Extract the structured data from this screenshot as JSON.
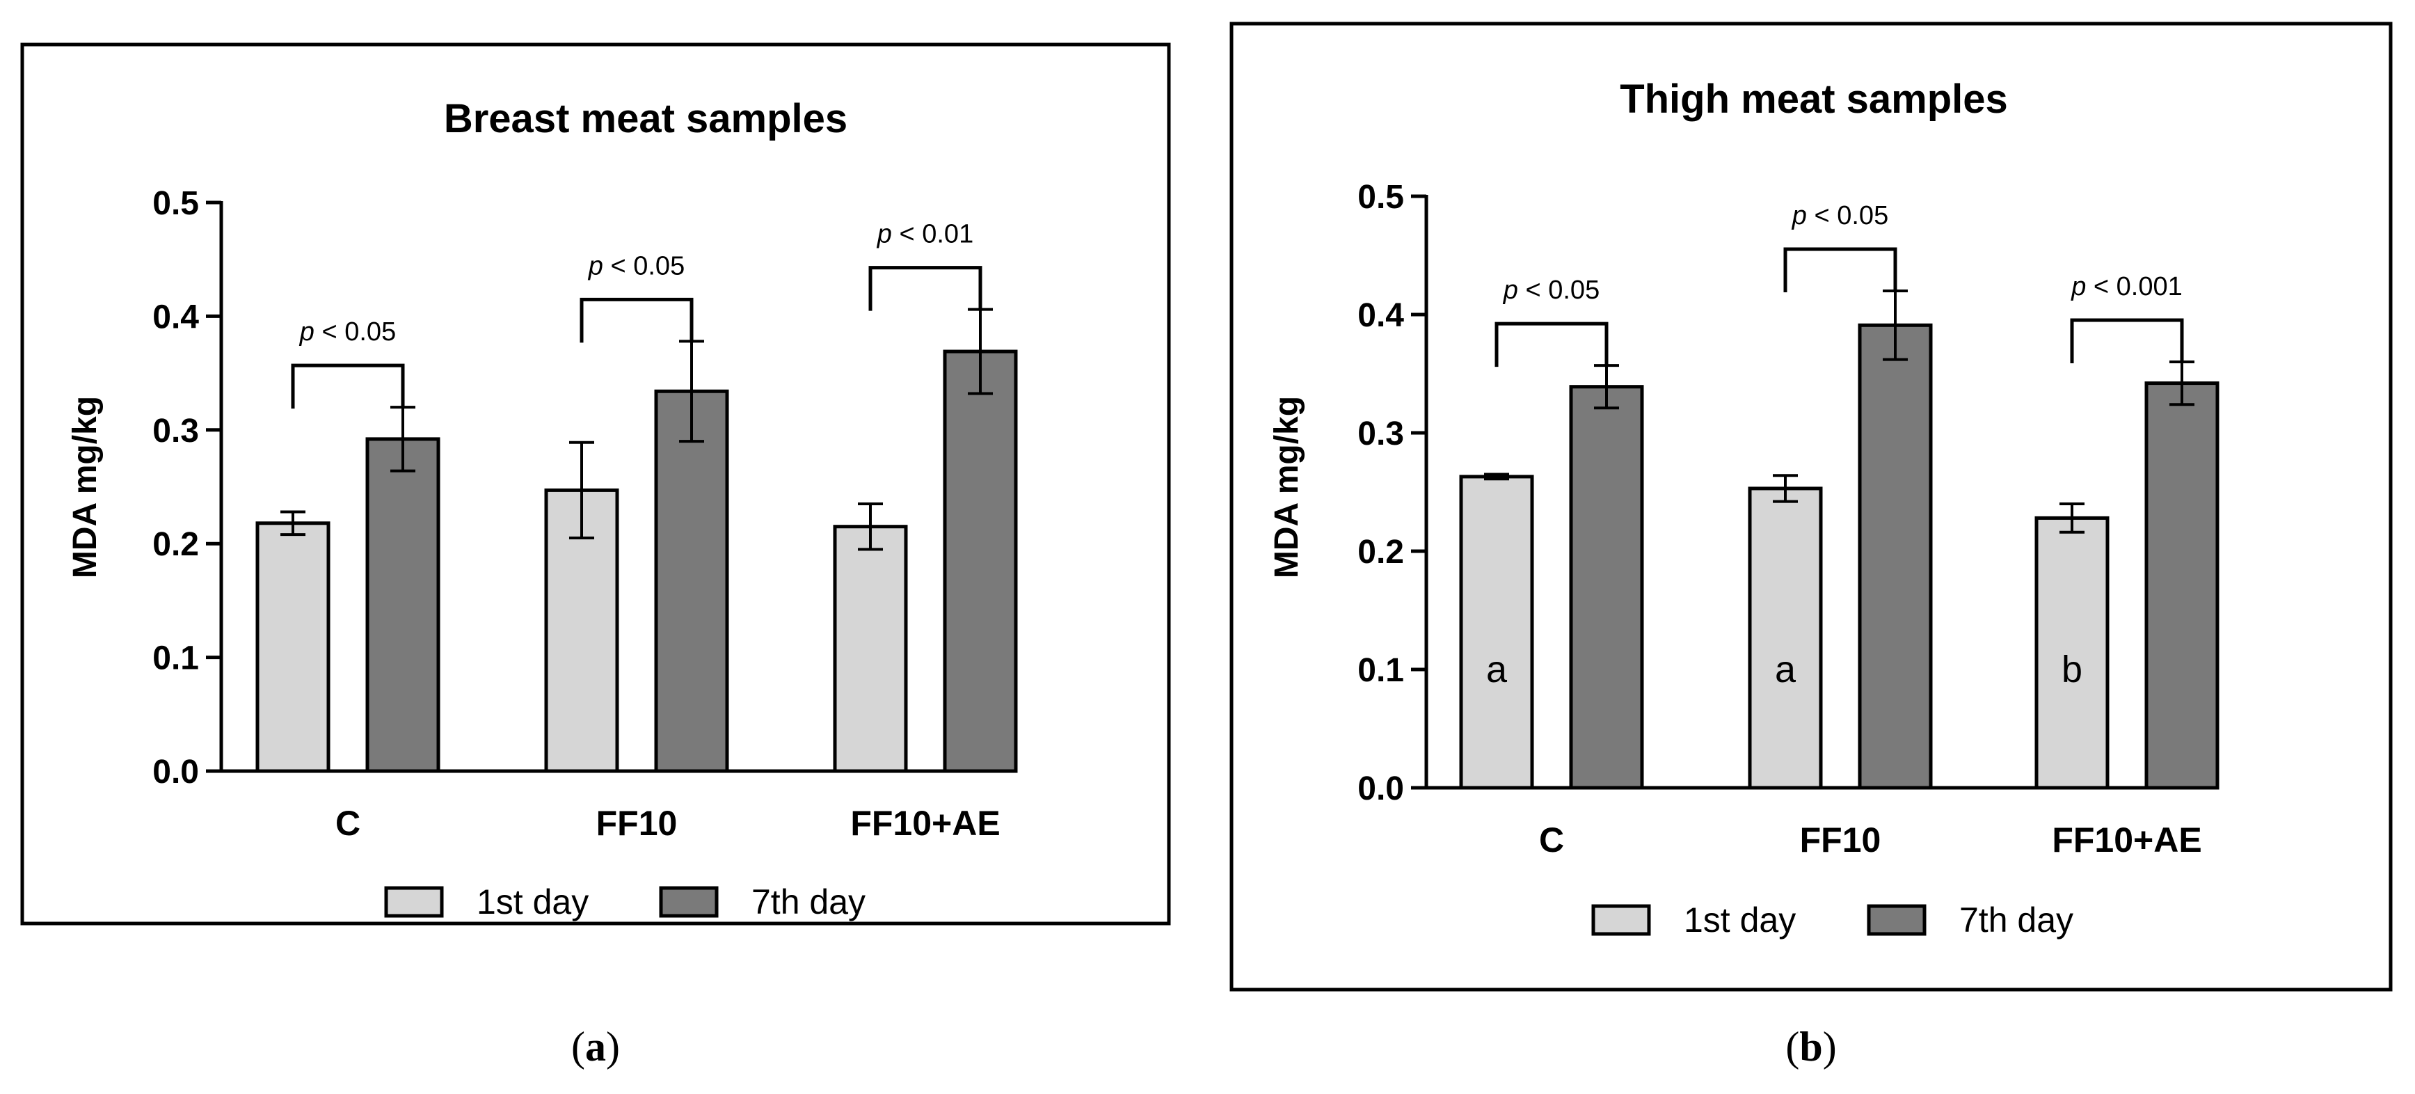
{
  "legend": [
    {
      "label": "1st day",
      "color": "#d6d6d6"
    },
    {
      "label": "7th day",
      "color": "#7a7a7a"
    }
  ],
  "chart_data": [
    {
      "type": "bar",
      "panel_label": "a",
      "title": "Breast meat samples",
      "ylabel": "MDA mg/kg",
      "xlabel": "",
      "ylim": [
        0,
        0.5
      ],
      "yticks": [
        "0.0",
        "0.1",
        "0.2",
        "0.3",
        "0.4",
        "0.5"
      ],
      "categories": [
        "C",
        "FF10",
        "FF10+AE"
      ],
      "series": [
        {
          "name": "1st day",
          "values": [
            0.218,
            0.247,
            0.215
          ],
          "errors": [
            0.01,
            0.042,
            0.02
          ]
        },
        {
          "name": "7th day",
          "values": [
            0.292,
            0.334,
            0.369
          ],
          "errors": [
            0.028,
            0.044,
            0.037
          ]
        }
      ],
      "significance": [
        {
          "prefix": "p",
          "text": " < 0.05"
        },
        {
          "prefix": "p",
          "text": " < 0.05"
        },
        {
          "prefix": "p",
          "text": " < 0.01"
        }
      ],
      "letters": [],
      "legend_position": "bottom"
    },
    {
      "type": "bar",
      "panel_label": "b",
      "title": "Thigh meat samples",
      "ylabel": "MDA mg/kg",
      "xlabel": "",
      "ylim": [
        0,
        0.5
      ],
      "yticks": [
        "0.0",
        "0.1",
        "0.2",
        "0.3",
        "0.4",
        "0.5"
      ],
      "categories": [
        "C",
        "FF10",
        "FF10+AE"
      ],
      "series": [
        {
          "name": "1st day",
          "values": [
            0.263,
            0.253,
            0.228
          ],
          "errors": [
            0.002,
            0.011,
            0.012
          ]
        },
        {
          "name": "7th day",
          "values": [
            0.339,
            0.391,
            0.342
          ],
          "errors": [
            0.018,
            0.029,
            0.018
          ]
        }
      ],
      "significance": [
        {
          "prefix": "p",
          "text": " < 0.05"
        },
        {
          "prefix": "p",
          "text": " < 0.05"
        },
        {
          "prefix": "p",
          "text": " < 0.001"
        }
      ],
      "letters": [
        "a",
        "a",
        "b"
      ],
      "legend_position": "bottom"
    }
  ]
}
